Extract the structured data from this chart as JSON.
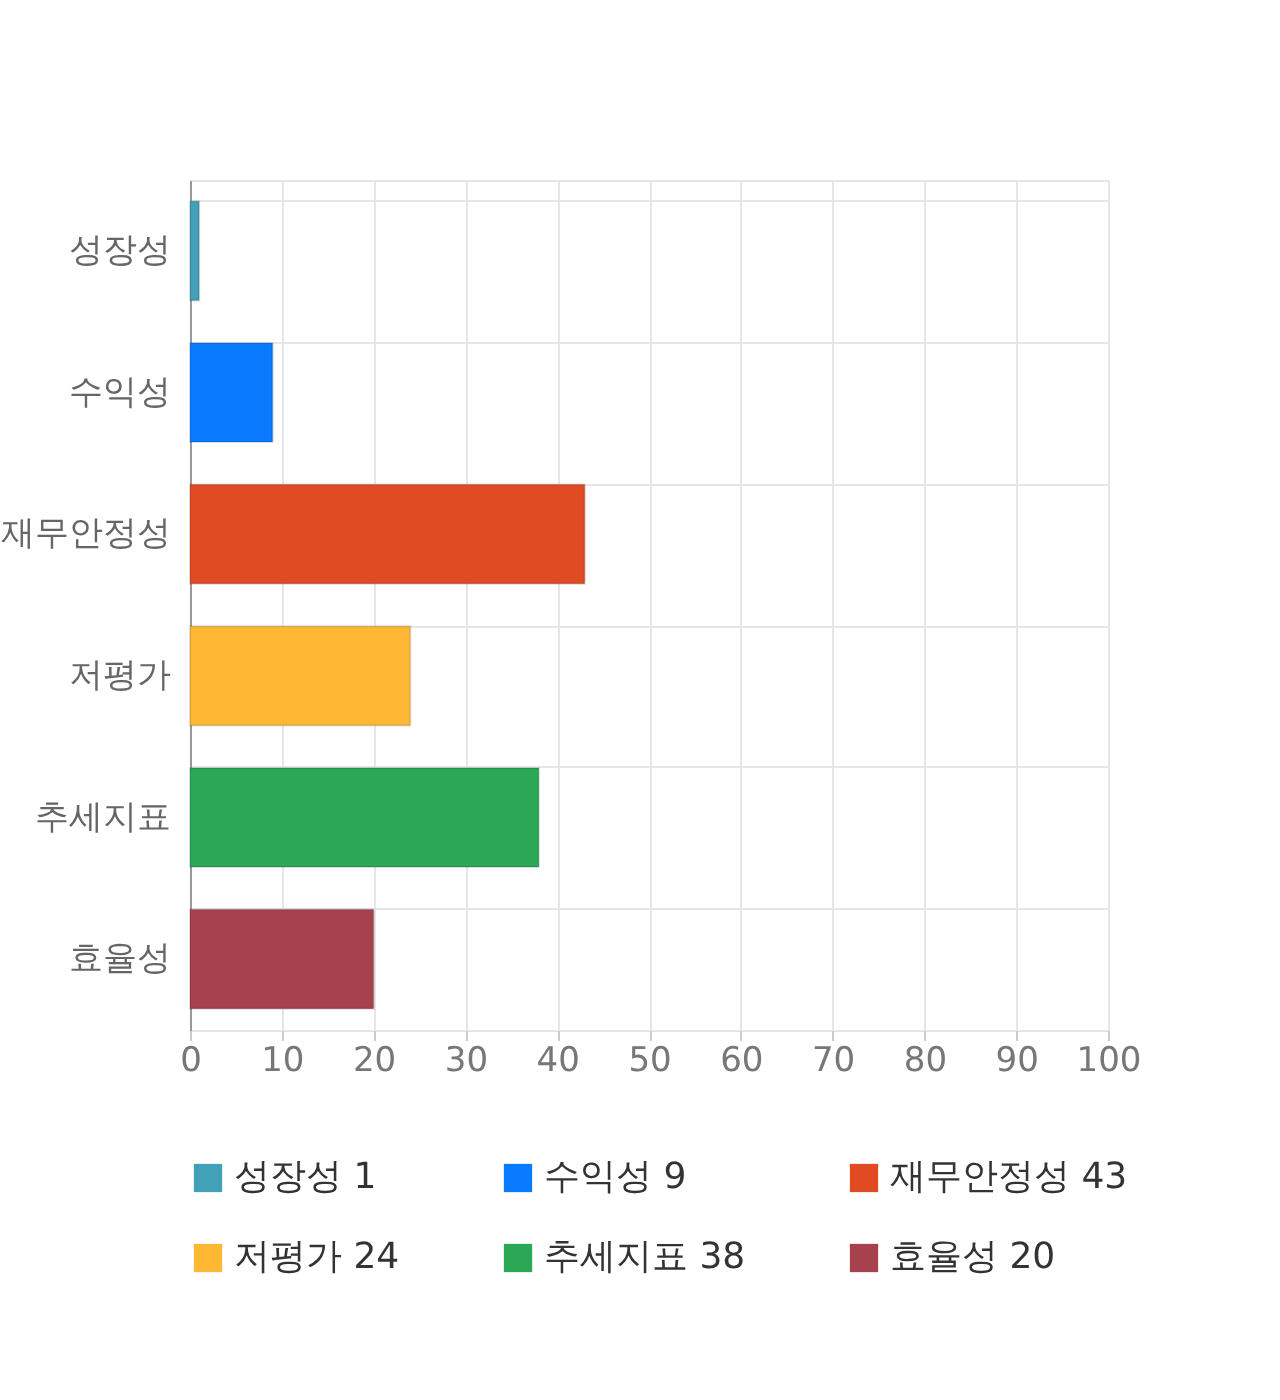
{
  "chart_data": {
    "type": "bar",
    "orientation": "horizontal",
    "categories": [
      "성장성",
      "수익성",
      "재무안정성",
      "저평가",
      "추세지표",
      "효율성"
    ],
    "series": [
      {
        "name": "성장성 1",
        "color": "#42a0b8",
        "values": [
          1,
          null,
          null,
          null,
          null,
          null
        ]
      },
      {
        "name": "수익성 9",
        "color": "#0a7bff",
        "values": [
          null,
          9,
          null,
          null,
          null,
          null
        ]
      },
      {
        "name": "재무안정성 43",
        "color": "#e04b23",
        "values": [
          null,
          null,
          43,
          null,
          null,
          null
        ]
      },
      {
        "name": "저평가 24",
        "color": "#ffb833",
        "values": [
          null,
          null,
          null,
          24,
          null,
          null
        ]
      },
      {
        "name": "추세지표 38",
        "color": "#2aa855",
        "values": [
          null,
          null,
          null,
          null,
          38,
          null
        ]
      },
      {
        "name": "효율성 20",
        "color": "#a8414e",
        "values": [
          null,
          null,
          null,
          null,
          null,
          20
        ]
      }
    ],
    "xlim": [
      0,
      100
    ],
    "xticks": [
      0,
      10,
      20,
      30,
      40,
      50,
      60,
      70,
      80,
      90,
      100
    ],
    "grid": true,
    "legend": "bottom"
  }
}
